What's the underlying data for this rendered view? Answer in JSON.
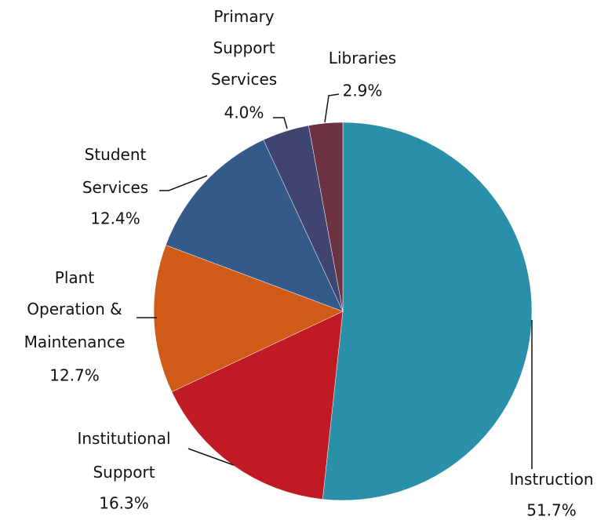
{
  "chart_data": {
    "type": "pie",
    "categories": [
      "Instruction",
      "Institutional Support",
      "Plant Operation & Maintenance",
      "Student Services",
      "Primary Support Services",
      "Libraries"
    ],
    "values": [
      51.7,
      16.3,
      12.7,
      12.4,
      4.0,
      2.9
    ],
    "value_labels": [
      "51.7%",
      "16.3%",
      "12.7%",
      "12.4%",
      "4.0%",
      "2.9%"
    ],
    "colors": [
      "#2a8fa8",
      "#c01b24",
      "#d05a18",
      "#345a8a",
      "#3f4470",
      "#6b3342"
    ]
  }
}
